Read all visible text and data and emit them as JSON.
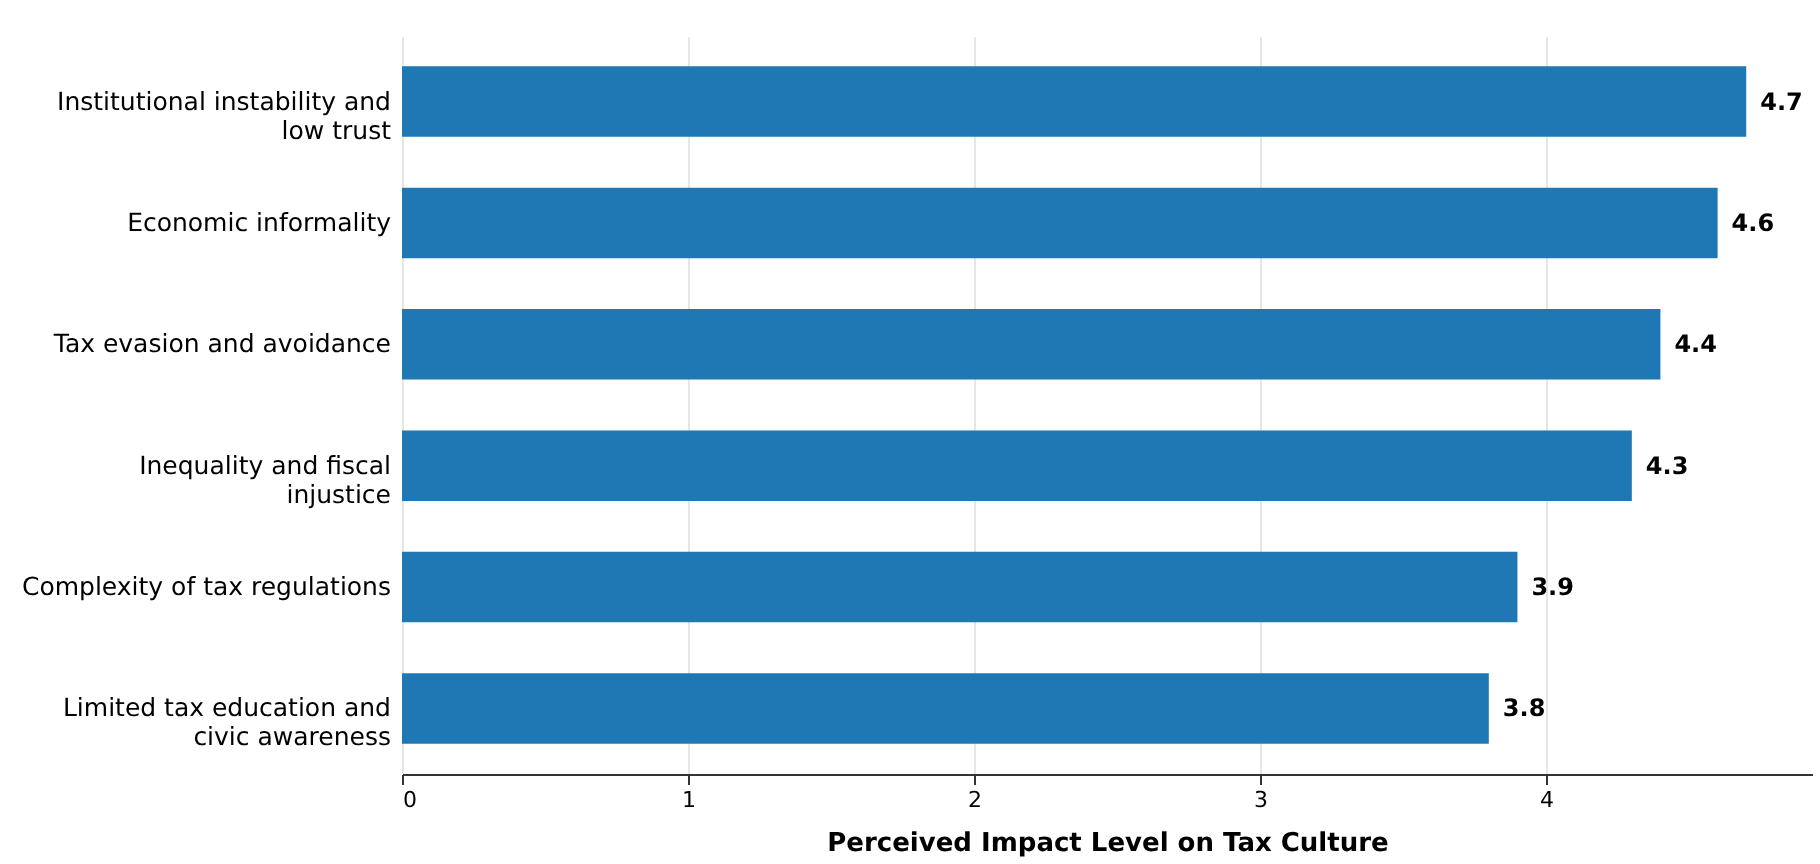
{
  "chart_data": {
    "type": "bar",
    "orientation": "horizontal",
    "xlabel": "Perceived Impact Level on Tax Culture",
    "categories": [
      "Institutional instability and low trust",
      "Economic informality",
      "Tax evasion and avoidance",
      "Inequality and fiscal injustice",
      "Complexity of tax regulations",
      "Limited tax education and civic awareness"
    ],
    "values": [
      4.7,
      4.6,
      4.4,
      4.3,
      3.9,
      3.8
    ],
    "color": "#1f77b4",
    "xlim": [
      0,
      4.93
    ],
    "xticks": [
      0,
      1,
      2,
      3,
      4
    ],
    "grid": "x",
    "data_labels": true
  }
}
